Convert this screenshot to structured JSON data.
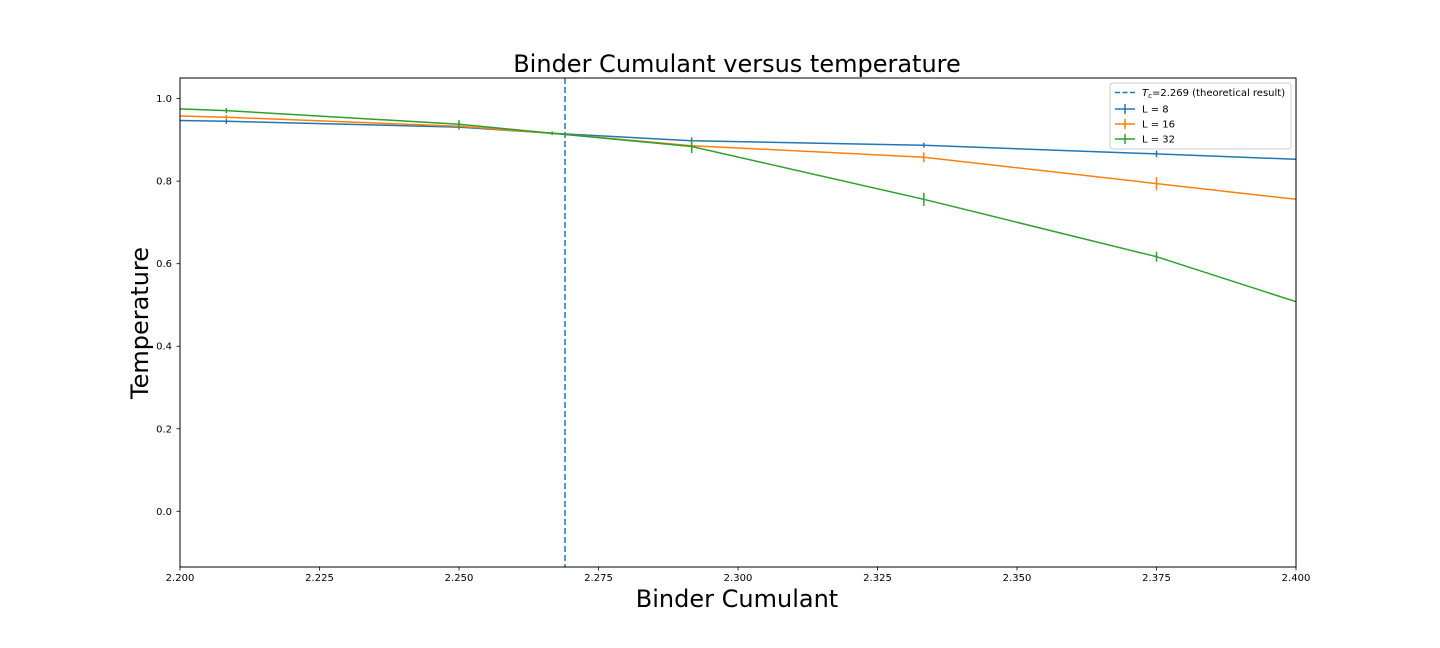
{
  "chart_data": {
    "type": "line",
    "title": "Binder Cumulant versus temperature",
    "xlabel": "Binder Cumulant",
    "ylabel": "Temperature",
    "xlim": [
      2.2,
      2.4
    ],
    "ylim": [
      -0.135,
      1.05
    ],
    "x_ticks": [
      "2.200",
      "2.225",
      "2.250",
      "2.275",
      "2.300",
      "2.325",
      "2.350",
      "2.375",
      "2.400"
    ],
    "y_ticks": [
      "0.0",
      "0.2",
      "0.4",
      "0.6",
      "0.8",
      "1.0"
    ],
    "grid": false,
    "legend_position": "top-right",
    "vline": {
      "x": 2.269,
      "label_prefix": "T",
      "label_sub": "c",
      "label_suffix": "=2.269 (theoretical result)",
      "color": "#1f77b4",
      "style": "dashed"
    },
    "series": [
      {
        "name": "L = 8",
        "color": "#1f77b4",
        "x": [
          2.2,
          2.2083,
          2.25,
          2.2667,
          2.2917,
          2.3333,
          2.375,
          2.4
        ],
        "y": [
          0.947,
          0.945,
          0.931,
          0.916,
          0.898,
          0.887,
          0.866,
          0.853
        ],
        "err": [
          0,
          0.006,
          0.006,
          0.004,
          0.008,
          0.006,
          0.008,
          0
        ]
      },
      {
        "name": "L = 16",
        "color": "#ff7f0e",
        "x": [
          2.2,
          2.2083,
          2.25,
          2.2667,
          2.2917,
          2.3333,
          2.375,
          2.4
        ],
        "y": [
          0.958,
          0.955,
          0.933,
          0.916,
          0.886,
          0.858,
          0.794,
          0.756
        ],
        "err": [
          0,
          0.006,
          0.008,
          0.004,
          0.012,
          0.012,
          0.016,
          0
        ]
      },
      {
        "name": "L = 32",
        "color": "#2ca02c",
        "x": [
          2.2,
          2.2083,
          2.25,
          2.2667,
          2.2917,
          2.3333,
          2.375,
          2.4
        ],
        "y": [
          0.975,
          0.971,
          0.938,
          0.916,
          0.884,
          0.756,
          0.617,
          0.508
        ],
        "err": [
          0,
          0.006,
          0.01,
          0.004,
          0.016,
          0.016,
          0.012,
          0
        ]
      }
    ]
  }
}
